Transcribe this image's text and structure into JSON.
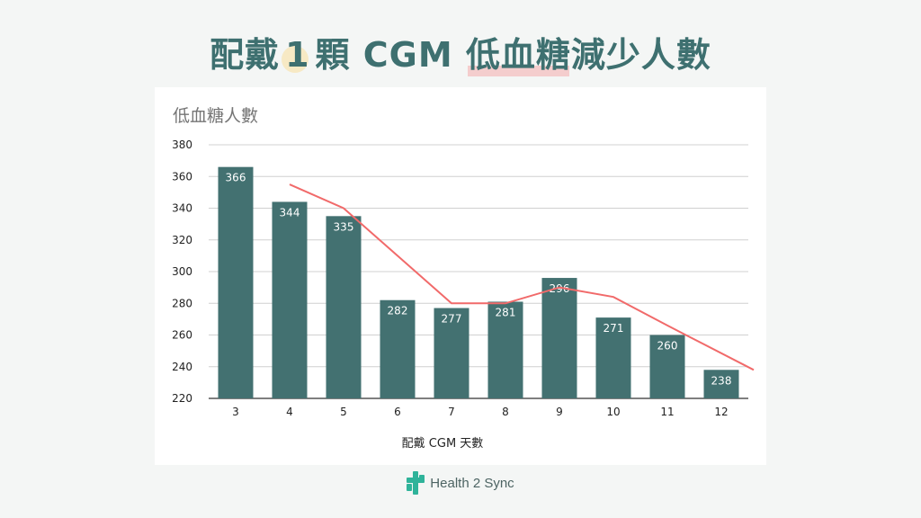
{
  "title": {
    "part1": "配戴",
    "num": "1",
    "part2": "顆 CGM",
    "hl": "低血糖",
    "part3": "減少人數"
  },
  "brand": "Health 2 Sync",
  "colors": {
    "bar": "#437171",
    "line": "#f16a6a",
    "title": "#3e7070"
  },
  "chart_data": {
    "type": "bar",
    "title": "低血糖人數",
    "xlabel": "配戴 CGM 天數",
    "ylabel": "",
    "categories": [
      "3",
      "4",
      "5",
      "6",
      "7",
      "8",
      "9",
      "10",
      "11",
      "12"
    ],
    "values": [
      366,
      344,
      335,
      282,
      277,
      281,
      296,
      271,
      260,
      238
    ],
    "trendline": {
      "x": [
        "4",
        "5",
        "6",
        "7",
        "8",
        "9",
        "10",
        "11",
        "12.6"
      ],
      "y": [
        355,
        340,
        310,
        280,
        280,
        290,
        284,
        266,
        238
      ]
    },
    "yticks": [
      220,
      240,
      260,
      280,
      300,
      320,
      340,
      360,
      380
    ],
    "ylim": [
      220,
      380
    ],
    "grid": true,
    "data_labels": true
  }
}
